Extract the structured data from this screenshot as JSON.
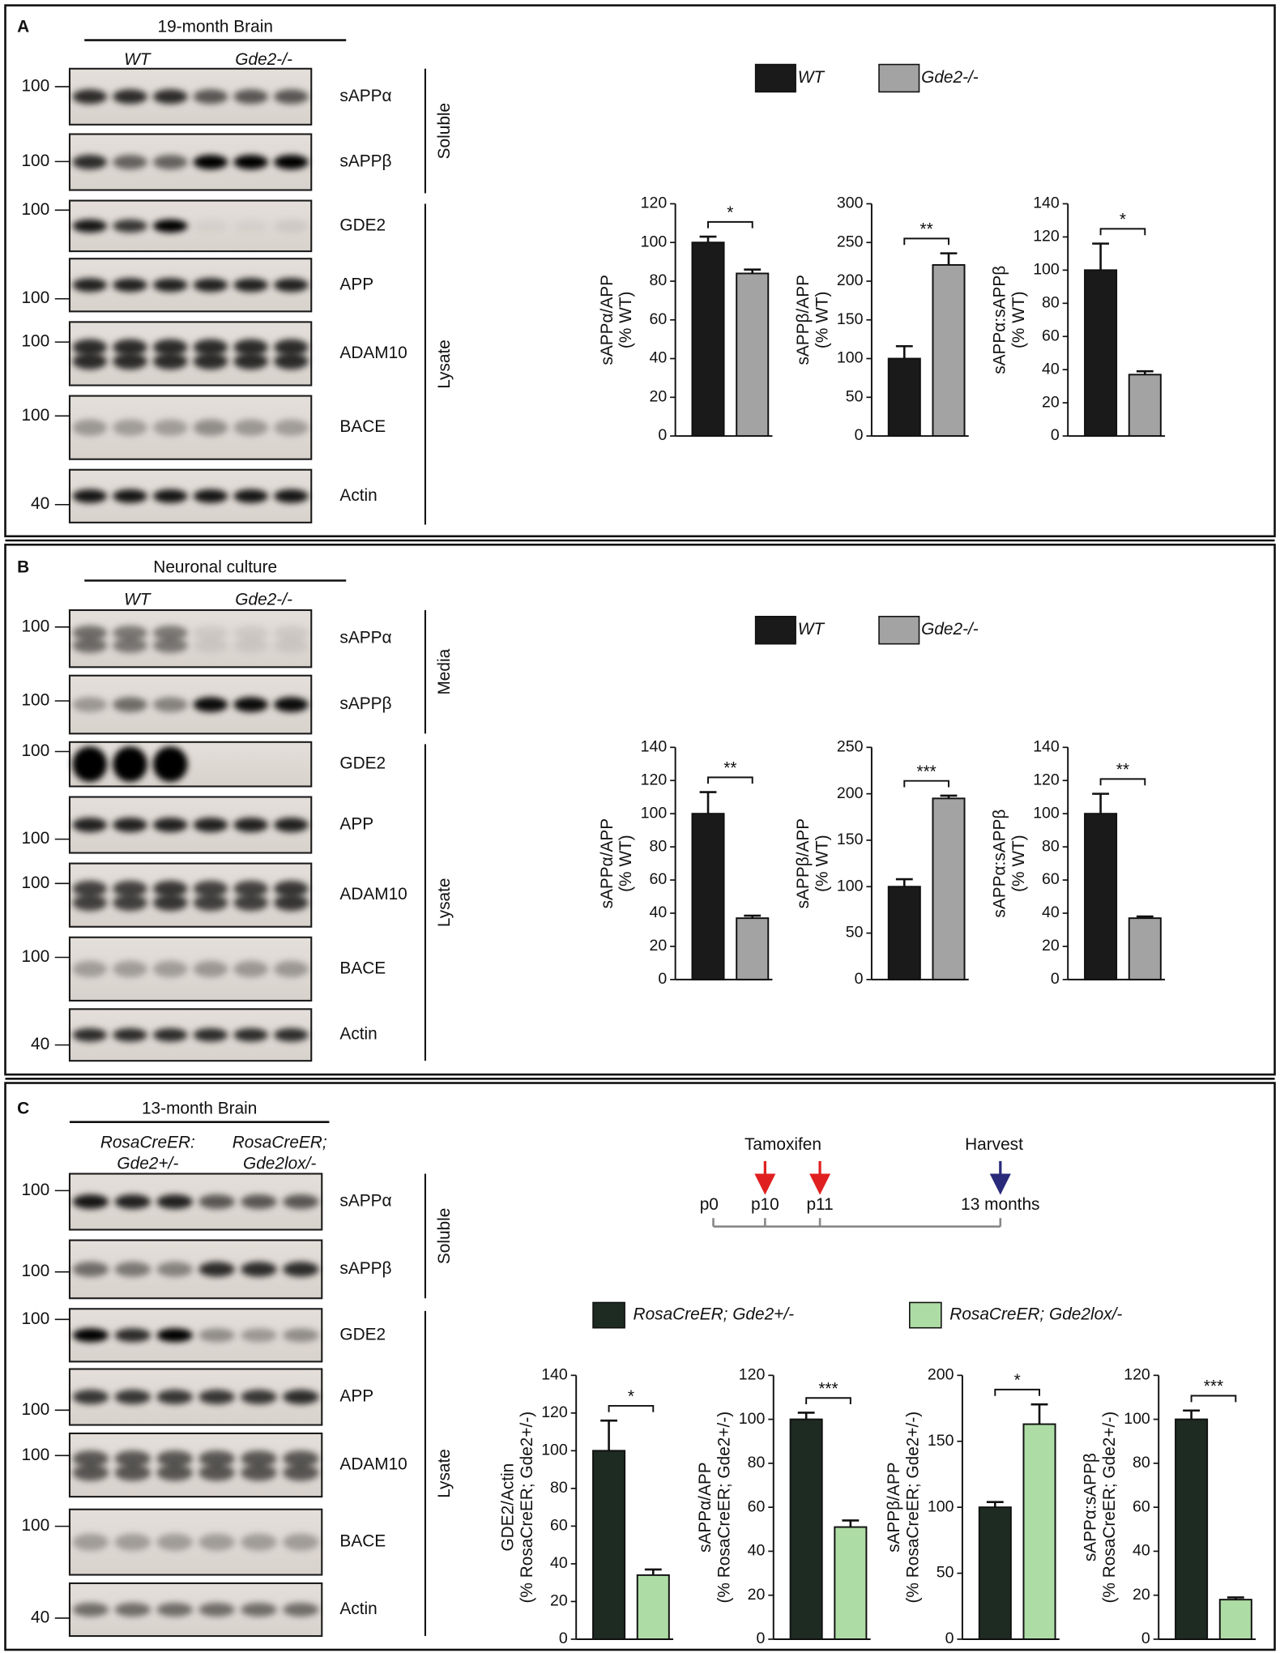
{
  "panels": [
    {
      "label": "A",
      "title": "19-month Brain",
      "groups": [
        [
          "WT"
        ],
        [
          "Gde2-/-"
        ]
      ],
      "blots": [
        {
          "marker": 100,
          "name": "sAPPα"
        },
        {
          "marker": 100,
          "name": "sAPPβ"
        },
        {
          "marker": 100,
          "name": "GDE2"
        },
        {
          "marker": 100,
          "name": "APP"
        },
        {
          "marker": 100,
          "name": "ADAM10"
        },
        {
          "marker": 100,
          "name": "BACE"
        },
        {
          "marker": 40,
          "name": "Actin"
        }
      ],
      "fractions": [
        "Soluble",
        "Lysate"
      ],
      "legend": [
        {
          "name": "WT",
          "color": "#1a1a1a"
        },
        {
          "name": "Gde2-/-",
          "color": "#a3a3a3"
        }
      ],
      "chart_data": [
        {
          "type": "bar",
          "ylabel": [
            "sAPPα/APP",
            "(% WT)"
          ],
          "values": [
            100,
            84
          ],
          "errors": [
            3,
            2
          ],
          "ylim": [
            0,
            120
          ],
          "yticks": [
            0,
            20,
            40,
            60,
            80,
            100,
            120
          ],
          "significance": "*"
        },
        {
          "type": "bar",
          "ylabel": [
            "sAPPβ/APP",
            "(% WT)"
          ],
          "values": [
            100,
            221
          ],
          "errors": [
            16,
            15
          ],
          "ylim": [
            0,
            300
          ],
          "yticks": [
            0,
            50,
            100,
            150,
            200,
            250,
            300
          ],
          "significance": "**"
        },
        {
          "type": "bar",
          "ylabel": [
            "sAPPα:sAPPβ",
            "(% WT)"
          ],
          "values": [
            100,
            37
          ],
          "errors": [
            16,
            2
          ],
          "ylim": [
            0,
            140
          ],
          "yticks": [
            0,
            20,
            40,
            60,
            80,
            100,
            120,
            140
          ],
          "significance": "*"
        }
      ]
    },
    {
      "label": "B",
      "title": "Neuronal culture",
      "groups": [
        [
          "WT"
        ],
        [
          "Gde2-/-"
        ]
      ],
      "blots": [
        {
          "marker": 100,
          "name": "sAPPα"
        },
        {
          "marker": 100,
          "name": "sAPPβ"
        },
        {
          "marker": 100,
          "name": "GDE2"
        },
        {
          "marker": 100,
          "name": "APP"
        },
        {
          "marker": 100,
          "name": "ADAM10"
        },
        {
          "marker": 100,
          "name": "BACE"
        },
        {
          "marker": 40,
          "name": "Actin"
        }
      ],
      "fractions": [
        "Media",
        "Lysate"
      ],
      "legend": [
        {
          "name": "WT",
          "color": "#1a1a1a"
        },
        {
          "name": "Gde2-/-",
          "color": "#a3a3a3"
        }
      ],
      "chart_data": [
        {
          "type": "bar",
          "ylabel": [
            "sAPPα/APP",
            "(% WT)"
          ],
          "values": [
            100,
            37
          ],
          "errors": [
            13,
            1.5
          ],
          "ylim": [
            0,
            140
          ],
          "yticks": [
            0,
            20,
            40,
            60,
            80,
            100,
            120,
            140
          ],
          "significance": "**"
        },
        {
          "type": "bar",
          "ylabel": [
            "sAPPβ/APP",
            "(% WT)"
          ],
          "values": [
            100,
            195
          ],
          "errors": [
            8,
            3
          ],
          "ylim": [
            0,
            250
          ],
          "yticks": [
            0,
            50,
            100,
            150,
            200,
            250
          ],
          "significance": "***"
        },
        {
          "type": "bar",
          "ylabel": [
            "sAPPα:sAPPβ",
            "(% WT)"
          ],
          "values": [
            100,
            37
          ],
          "errors": [
            12,
            1
          ],
          "ylim": [
            0,
            140
          ],
          "yticks": [
            0,
            20,
            40,
            60,
            80,
            100,
            120,
            140
          ],
          "significance": "**"
        }
      ]
    },
    {
      "label": "C",
      "title": "13-month Brain",
      "groups": [
        [
          "RosaCreER:",
          "Gde2+/-"
        ],
        [
          "RosaCreER;",
          "Gde2lox/-"
        ]
      ],
      "blots": [
        {
          "marker": 100,
          "name": "sAPPα"
        },
        {
          "marker": 100,
          "name": "sAPPβ"
        },
        {
          "marker": 100,
          "name": "GDE2"
        },
        {
          "marker": 100,
          "name": "APP"
        },
        {
          "marker": 100,
          "name": "ADAM10"
        },
        {
          "marker": 100,
          "name": "BACE"
        },
        {
          "marker": 40,
          "name": "Actin"
        }
      ],
      "fractions": [
        "Soluble",
        "Lysate"
      ],
      "timeline": {
        "events": [
          "Tamoxifen",
          "Harvest"
        ],
        "points": [
          "p0",
          "p10",
          "p11",
          "13 months"
        ]
      },
      "legend": [
        {
          "name": "RosaCreER; Gde2+/-",
          "color": "#1e2b23"
        },
        {
          "name": "RosaCreER; Gde2lox/-",
          "color": "#addca4"
        }
      ],
      "chart_data": [
        {
          "type": "bar",
          "ylabel": [
            "GDE2/Actin",
            "(% RosaCreER; Gde2+/-)"
          ],
          "values": [
            100,
            34
          ],
          "errors": [
            16,
            3
          ],
          "ylim": [
            0,
            140
          ],
          "yticks": [
            0,
            20,
            40,
            60,
            80,
            100,
            120,
            140
          ],
          "significance": "*"
        },
        {
          "type": "bar",
          "ylabel": [
            "sAPPα/APP",
            "(% RosaCreER; Gde2+/-)"
          ],
          "values": [
            100,
            51
          ],
          "errors": [
            3,
            3
          ],
          "ylim": [
            0,
            120
          ],
          "yticks": [
            0,
            20,
            40,
            60,
            80,
            100,
            120
          ],
          "significance": "***"
        },
        {
          "type": "bar",
          "ylabel": [
            "sAPPβ/APP",
            "(% RosaCreER; Gde2+/-)"
          ],
          "values": [
            100,
            163
          ],
          "errors": [
            4,
            15
          ],
          "ylim": [
            0,
            200
          ],
          "yticks": [
            0,
            50,
            100,
            150,
            200
          ],
          "significance": "*"
        },
        {
          "type": "bar",
          "ylabel": [
            "sAPPα:sAPPβ",
            "(% RosaCreER; Gde2+/-)"
          ],
          "values": [
            100,
            18
          ],
          "errors": [
            4,
            1
          ],
          "ylim": [
            0,
            120
          ],
          "yticks": [
            0,
            20,
            40,
            60,
            80,
            100,
            120
          ],
          "significance": "***"
        }
      ]
    }
  ]
}
